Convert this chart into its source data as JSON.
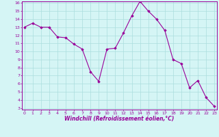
{
  "x": [
    0,
    1,
    2,
    3,
    4,
    5,
    6,
    7,
    8,
    9,
    10,
    11,
    12,
    13,
    14,
    15,
    16,
    17,
    18,
    19,
    20,
    21,
    22,
    23
  ],
  "y": [
    13.0,
    13.5,
    13.0,
    13.0,
    11.8,
    11.7,
    10.9,
    10.3,
    7.5,
    6.3,
    10.3,
    10.4,
    12.3,
    14.4,
    16.2,
    15.0,
    14.0,
    12.6,
    9.0,
    8.5,
    5.5,
    6.4,
    4.3,
    3.2
  ],
  "line_color": "#990099",
  "marker": "D",
  "marker_size": 1.8,
  "bg_color": "#d5f5f5",
  "grid_color": "#aadddd",
  "xlabel": "Windchill (Refroidissement éolien,°C)",
  "xlabel_color": "#990099",
  "tick_color": "#990099",
  "ylim_min": 3,
  "ylim_max": 16,
  "xlim_min": 0,
  "xlim_max": 23,
  "yticks": [
    3,
    4,
    5,
    6,
    7,
    8,
    9,
    10,
    11,
    12,
    13,
    14,
    15,
    16
  ],
  "xticks": [
    0,
    1,
    2,
    3,
    4,
    5,
    6,
    7,
    8,
    9,
    10,
    11,
    12,
    13,
    14,
    15,
    16,
    17,
    18,
    19,
    20,
    21,
    22,
    23
  ],
  "spine_color": "#990099",
  "linewidth": 0.8
}
